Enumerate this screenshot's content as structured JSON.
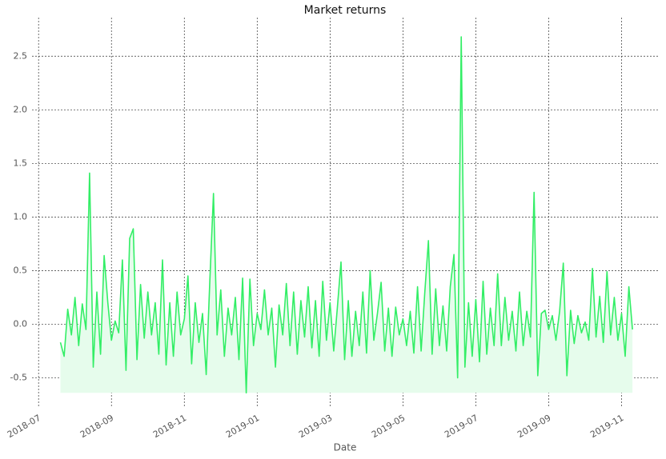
{
  "chart_data": {
    "type": "line",
    "title": "Market returns",
    "x_label": "Date",
    "x": [
      0.6,
      0.7,
      0.8,
      0.9,
      1.0,
      1.1,
      1.2,
      1.3,
      1.4,
      1.5,
      1.6,
      1.7,
      1.8,
      1.9,
      2.0,
      2.1,
      2.2,
      2.3,
      2.4,
      2.5,
      2.6,
      2.7,
      2.8,
      2.9,
      3.0,
      3.1,
      3.2,
      3.3,
      3.4,
      3.5,
      3.6,
      3.7,
      3.8,
      3.9,
      4.0,
      4.1,
      4.2,
      4.3,
      4.4,
      4.5,
      4.6,
      4.7,
      4.8,
      4.9,
      5.0,
      5.1,
      5.2,
      5.3,
      5.4,
      5.5,
      5.6,
      5.7,
      5.8,
      5.9,
      6.0,
      6.1,
      6.2,
      6.3,
      6.4,
      6.5,
      6.6,
      6.7,
      6.8,
      6.9,
      7.0,
      7.1,
      7.2,
      7.3,
      7.4,
      7.5,
      7.6,
      7.7,
      7.8,
      7.9,
      8.0,
      8.1,
      8.2,
      8.3,
      8.4,
      8.5,
      8.6,
      8.7,
      8.8,
      8.9,
      9.0,
      9.1,
      9.2,
      9.3,
      9.4,
      9.5,
      9.6,
      9.7,
      9.8,
      9.9,
      10.0,
      10.1,
      10.2,
      10.3,
      10.4,
      10.5,
      10.6,
      10.7,
      10.8,
      10.9,
      11.0,
      11.1,
      11.2,
      11.3,
      11.4,
      11.5,
      11.6,
      11.7,
      11.8,
      11.9,
      12.0,
      12.1,
      12.2,
      12.3,
      12.4,
      12.5,
      12.6,
      12.7,
      12.8,
      12.9,
      13.0,
      13.1,
      13.2,
      13.3,
      13.4,
      13.5,
      13.6,
      13.7,
      13.8,
      13.9,
      14.0,
      14.1,
      14.2,
      14.3,
      14.4,
      14.5,
      14.6,
      14.7,
      14.8,
      14.9,
      15.0,
      15.1,
      15.2,
      15.3,
      15.4,
      15.5,
      15.6,
      15.7,
      15.8,
      15.9,
      16.0,
      16.1,
      16.2,
      16.3
    ],
    "values": [
      -0.17,
      -0.3,
      0.14,
      -0.1,
      0.25,
      -0.2,
      0.19,
      -0.05,
      1.41,
      -0.4,
      0.3,
      -0.28,
      0.64,
      0.2,
      -0.15,
      0.03,
      -0.08,
      0.6,
      -0.43,
      0.8,
      0.89,
      -0.33,
      0.37,
      -0.13,
      0.3,
      -0.1,
      0.2,
      -0.28,
      0.6,
      -0.38,
      0.2,
      -0.3,
      0.3,
      -0.1,
      0.05,
      0.45,
      -0.37,
      0.2,
      -0.17,
      0.1,
      -0.47,
      0.4,
      1.22,
      -0.1,
      0.32,
      -0.3,
      0.15,
      -0.1,
      0.25,
      -0.33,
      0.43,
      -0.64,
      0.42,
      -0.2,
      0.1,
      -0.05,
      0.32,
      -0.1,
      0.15,
      -0.4,
      0.18,
      -0.1,
      0.38,
      -0.2,
      0.3,
      -0.28,
      0.22,
      -0.12,
      0.35,
      -0.22,
      0.22,
      -0.3,
      0.4,
      -0.15,
      0.2,
      -0.25,
      0.15,
      0.58,
      -0.33,
      0.22,
      -0.3,
      0.12,
      -0.2,
      0.3,
      -0.27,
      0.5,
      -0.15,
      0.1,
      0.39,
      -0.25,
      0.15,
      -0.3,
      0.16,
      -0.1,
      0.05,
      -0.2,
      0.12,
      -0.27,
      0.35,
      -0.25,
      0.3,
      0.78,
      -0.28,
      0.33,
      -0.2,
      0.17,
      -0.25,
      0.35,
      0.65,
      -0.5,
      2.68,
      -0.4,
      0.2,
      -0.3,
      0.23,
      -0.35,
      0.4,
      -0.28,
      0.15,
      -0.2,
      0.47,
      -0.2,
      0.25,
      -0.15,
      0.12,
      -0.25,
      0.3,
      -0.2,
      0.12,
      -0.12,
      1.23,
      -0.48,
      0.1,
      0.13,
      -0.05,
      0.08,
      -0.15,
      0.12,
      0.57,
      -0.48,
      0.13,
      -0.18,
      0.08,
      -0.08,
      0.02,
      -0.15,
      0.52,
      -0.12,
      0.26,
      -0.17,
      0.49,
      -0.1,
      0.25,
      -0.15,
      0.1,
      -0.3,
      0.35,
      -0.05
    ],
    "color": "#33ee66",
    "fill_color": "#e6fcec",
    "xlim": [
      -0.18,
      17.0
    ],
    "xticks": [
      {
        "value": 0,
        "label": "2018-07"
      },
      {
        "value": 2,
        "label": "2018-09"
      },
      {
        "value": 4,
        "label": "2018-11"
      },
      {
        "value": 6,
        "label": "2019-01"
      },
      {
        "value": 8,
        "label": "2019-03"
      },
      {
        "value": 10,
        "label": "2019-05"
      },
      {
        "value": 12,
        "label": "2019-07"
      },
      {
        "value": 14,
        "label": "2019-09"
      },
      {
        "value": 16,
        "label": "2019-11"
      }
    ],
    "ylim": [
      -0.78,
      2.86
    ],
    "yticks": [
      -0.5,
      {
        "value": 0,
        "label": "0.0"
      },
      0.5,
      {
        "value": 1,
        "label": "1.0"
      },
      1.5,
      {
        "value": 2,
        "label": "2.0"
      },
      2.5
    ],
    "grid": true
  }
}
